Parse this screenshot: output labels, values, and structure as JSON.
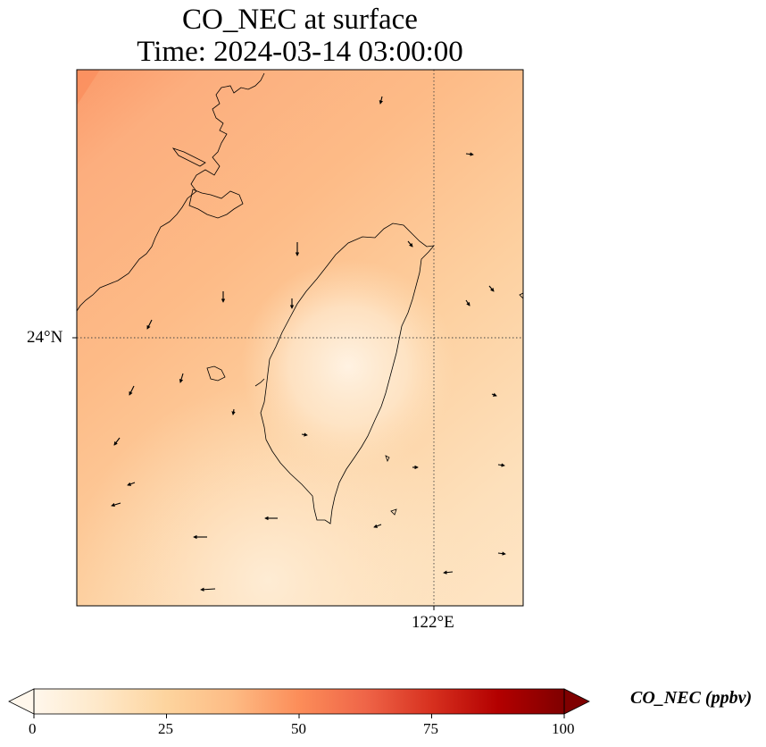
{
  "title": {
    "line1": "CO_NEC at surface",
    "line2": "Time: 2024-03-14 03:00:00"
  },
  "axes": {
    "lat_ticks": [
      "24°N"
    ],
    "lon_ticks": [
      "122°E"
    ],
    "gridlines": "dotted"
  },
  "colorbar": {
    "label": "CO_NEC (ppbv)",
    "ticks": [
      "0",
      "25",
      "50",
      "75",
      "100"
    ],
    "range": [
      0,
      100
    ],
    "extend": "both",
    "colormap": "OrRd",
    "colors": [
      "#fff7ec",
      "#fee8c8",
      "#fdd49e",
      "#fdbb84",
      "#fc8d59",
      "#ef6548",
      "#d7301f",
      "#b30000",
      "#7f0000"
    ]
  },
  "map": {
    "region": "Taiwan and the Taiwan Strait",
    "field_range_ppbv": [
      3,
      45
    ],
    "features": [
      "coastlines",
      "wind-vectors"
    ]
  }
}
